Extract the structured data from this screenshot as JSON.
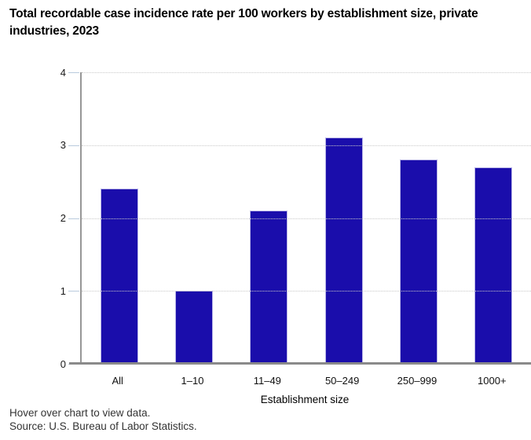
{
  "header": {
    "title": "Total recordable case incidence rate per 100 workers by establishment size, private industries, 2023"
  },
  "chart_data": {
    "type": "bar",
    "categories": [
      "All",
      "1–10",
      "11–49",
      "50–249",
      "250–999",
      "1000+"
    ],
    "values": [
      2.4,
      1.0,
      2.1,
      3.1,
      2.8,
      2.7
    ],
    "title": "Total recordable case incidence rate per 100 workers by establishment size, private industries, 2023",
    "xlabel": "Establishment size",
    "ylabel": "",
    "ylim": [
      0,
      4
    ],
    "yticks": [
      0,
      1,
      2,
      3,
      4
    ],
    "grid": "horizontal-dotted",
    "legend": "none",
    "bar_color": "#1a0dab",
    "bar_border_color": "#b9b5e7",
    "axis_color": "#8a8a8a",
    "tick_color": "#b9cbdd"
  },
  "footer": {
    "hover_note": "Hover over chart to view data.",
    "source": "Source: U.S. Bureau of Labor Statistics."
  }
}
